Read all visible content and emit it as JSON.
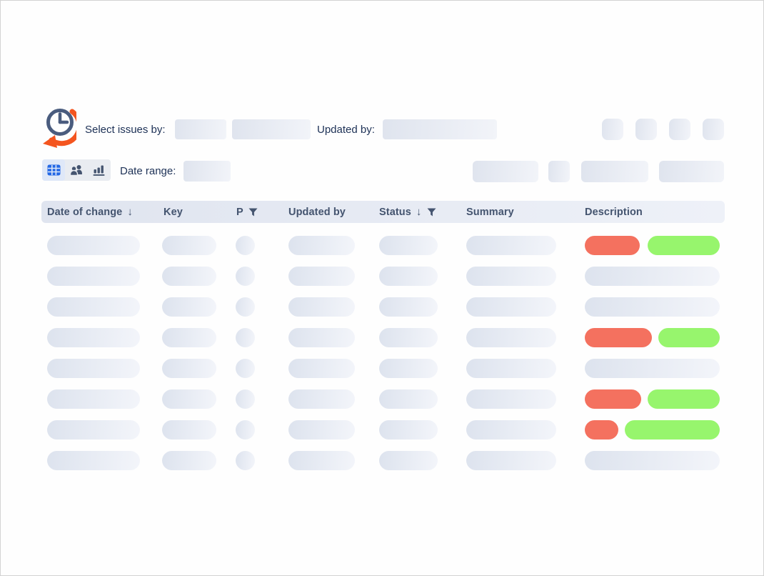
{
  "app": {
    "logo_alt": "issue-history-clock-logo"
  },
  "toolbar": {
    "select_issues_label": "Select issues by:",
    "updated_by_label": "Updated by:",
    "date_range_label": "Date range:"
  },
  "view_toggle": {
    "options": [
      {
        "name": "table-view",
        "icon": "table-grid-icon",
        "selected": true
      },
      {
        "name": "people-view",
        "icon": "people-icon",
        "selected": false
      },
      {
        "name": "chart-view",
        "icon": "bar-chart-icon",
        "selected": false
      }
    ]
  },
  "icons": {
    "sort_arrow": "↓",
    "filter": "funnel-icon"
  },
  "table": {
    "columns": [
      {
        "key": "date_of_change",
        "label": "Date of change",
        "sorted": "desc"
      },
      {
        "key": "key",
        "label": "Key"
      },
      {
        "key": "priority",
        "label": "P",
        "filterable": true
      },
      {
        "key": "updated_by",
        "label": "Updated by"
      },
      {
        "key": "status",
        "label": "Status",
        "sorted": "desc",
        "filterable": true
      },
      {
        "key": "summary",
        "label": "Summary"
      },
      {
        "key": "description",
        "label": "Description"
      }
    ],
    "rows": [
      {
        "state": "loading",
        "description": {
          "type": "diff",
          "removed_w": 77,
          "added_w": 101
        }
      },
      {
        "state": "loading",
        "description": {
          "type": "text"
        }
      },
      {
        "state": "loading",
        "description": {
          "type": "text"
        }
      },
      {
        "state": "loading",
        "description": {
          "type": "diff",
          "removed_w": 94,
          "added_w": 86
        }
      },
      {
        "state": "loading",
        "description": {
          "type": "text"
        }
      },
      {
        "state": "loading",
        "description": {
          "type": "diff",
          "removed_w": 79,
          "added_w": 101
        }
      },
      {
        "state": "loading",
        "description": {
          "type": "diff",
          "removed_w": 47,
          "added_w": 133
        }
      },
      {
        "state": "loading",
        "description": {
          "type": "text"
        }
      }
    ]
  },
  "colors": {
    "accent_blue": "#2468e5",
    "header_text": "#44546f",
    "label_text": "#1d3156",
    "removed_red": "#f4715f",
    "added_green": "#97f56d",
    "logo_orange": "#f4551f",
    "logo_slate": "#4a5c7e",
    "skeleton_from": "#dde3ee",
    "skeleton_to": "#f3f5fa"
  }
}
